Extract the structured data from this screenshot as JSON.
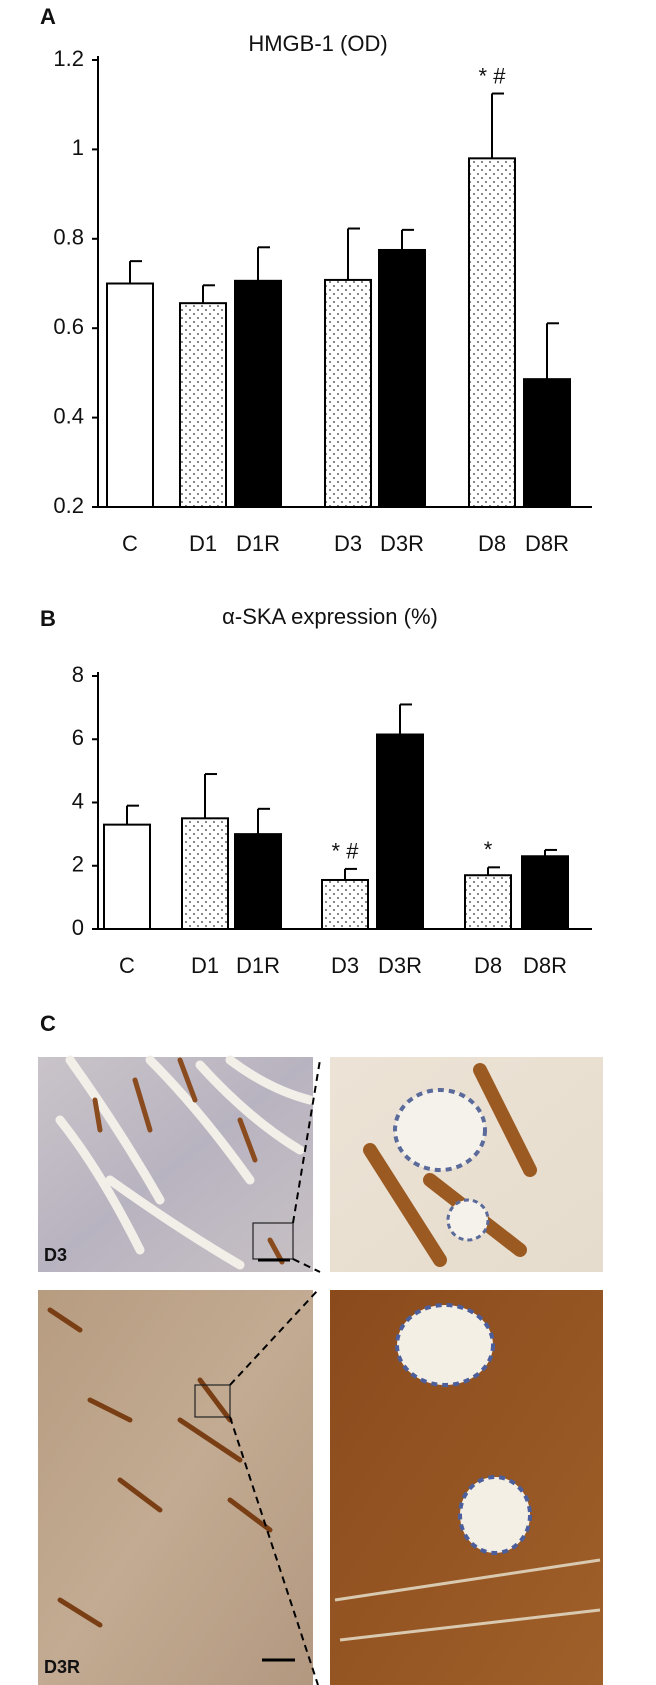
{
  "chart_data": [
    {
      "type": "bar",
      "panel": "A",
      "title": "HMGB-1 (OD)",
      "categories": [
        "C",
        "D1",
        "D1R",
        "D3",
        "D3R",
        "D8",
        "D8R"
      ],
      "values": [
        0.7,
        0.656,
        0.706,
        0.708,
        0.775,
        0.98,
        0.486
      ],
      "errors": [
        0.05,
        0.04,
        0.075,
        0.115,
        0.045,
        0.145,
        0.125
      ],
      "fills": [
        "white",
        "dotted",
        "black",
        "dotted",
        "black",
        "dotted",
        "black"
      ],
      "annotations": [
        null,
        null,
        null,
        null,
        null,
        "* #",
        null
      ],
      "ylim": [
        0.2,
        1.2
      ],
      "yticks": [
        0.2,
        0.4,
        0.6,
        0.8,
        1,
        1.2
      ],
      "grid": false
    },
    {
      "type": "bar",
      "panel": "B",
      "title": "α-SKA expression (%)",
      "categories": [
        "C",
        "D1",
        "D1R",
        "D3",
        "D3R",
        "D8",
        "D8R"
      ],
      "values": [
        3.3,
        3.5,
        3.0,
        1.55,
        6.15,
        1.7,
        2.3
      ],
      "errors": [
        0.6,
        1.4,
        0.8,
        0.35,
        0.95,
        0.25,
        0.2
      ],
      "fills": [
        "white",
        "dotted",
        "black",
        "dotted",
        "black",
        "dotted",
        "black"
      ],
      "annotations": [
        null,
        null,
        null,
        "* #",
        null,
        "*",
        null
      ],
      "ylim": [
        0,
        8
      ],
      "yticks": [
        0,
        2,
        4,
        6,
        8
      ],
      "grid": false
    }
  ],
  "panel_c": {
    "label": "C",
    "images": [
      {
        "label": "D3"
      },
      {
        "label": "D3R"
      }
    ]
  }
}
